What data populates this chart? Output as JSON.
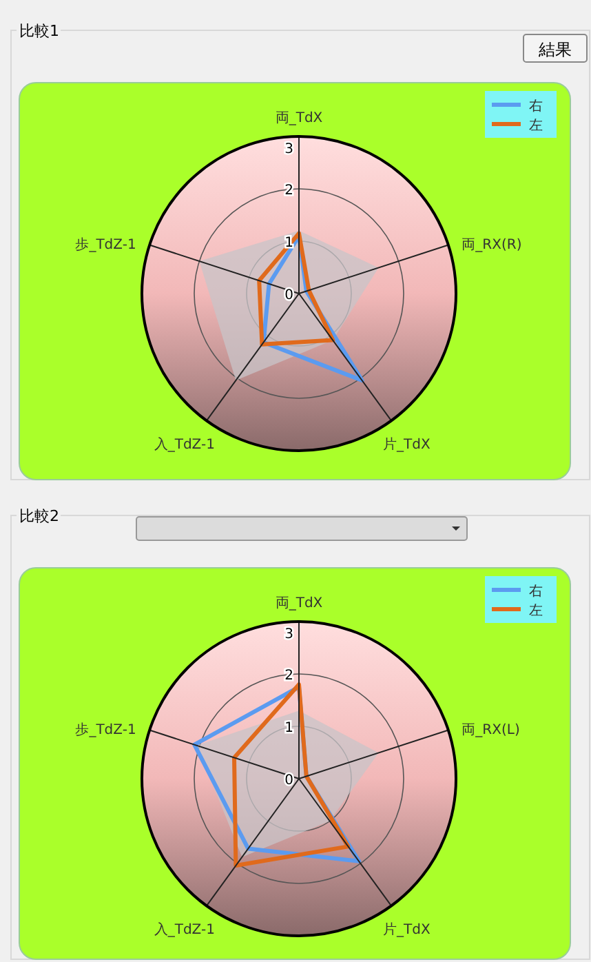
{
  "chart_data": [
    {
      "type": "radar",
      "title": "比較1",
      "annotations": [
        "結果"
      ],
      "categories": [
        "両_TdX",
        "両_RX(R)",
        "片_TdX",
        "入_TdZ-1",
        "歩_TdZ-1"
      ],
      "ylim": [
        0,
        3
      ],
      "yticks": [
        0,
        1,
        2,
        3
      ],
      "legend": "top right",
      "series": [
        {
          "type": "area",
          "color": "#c8c4c8",
          "values": [
            1.2,
            1.6,
            1.1,
            2.05,
            2.0
          ]
        },
        {
          "name": "右",
          "color": "#5b9bf0",
          "values": [
            1.1,
            0.15,
            2.05,
            1.15,
            0.6
          ]
        },
        {
          "name": "左",
          "color": "#e06a1c",
          "values": [
            1.15,
            0.2,
            1.1,
            1.2,
            0.8
          ]
        }
      ]
    },
    {
      "type": "radar",
      "title": "比較2",
      "categories": [
        "両_TdX",
        "両_RX(L)",
        "片_TdX",
        "入_TdZ-1",
        "歩_TdZ-1"
      ],
      "ylim": [
        0,
        3
      ],
      "yticks": [
        0,
        1,
        2,
        3
      ],
      "legend": "top right",
      "series": [
        {
          "type": "area",
          "color": "#c8c4c8",
          "values": [
            1.3,
            1.6,
            1.0,
            1.85,
            2.05
          ]
        },
        {
          "name": "右",
          "color": "#5b9bf0",
          "values": [
            1.75,
            0.15,
            1.95,
            1.65,
            2.1
          ]
        },
        {
          "name": "左",
          "color": "#e06a1c",
          "values": [
            1.8,
            0.15,
            1.6,
            2.05,
            1.3
          ]
        }
      ]
    }
  ]
}
